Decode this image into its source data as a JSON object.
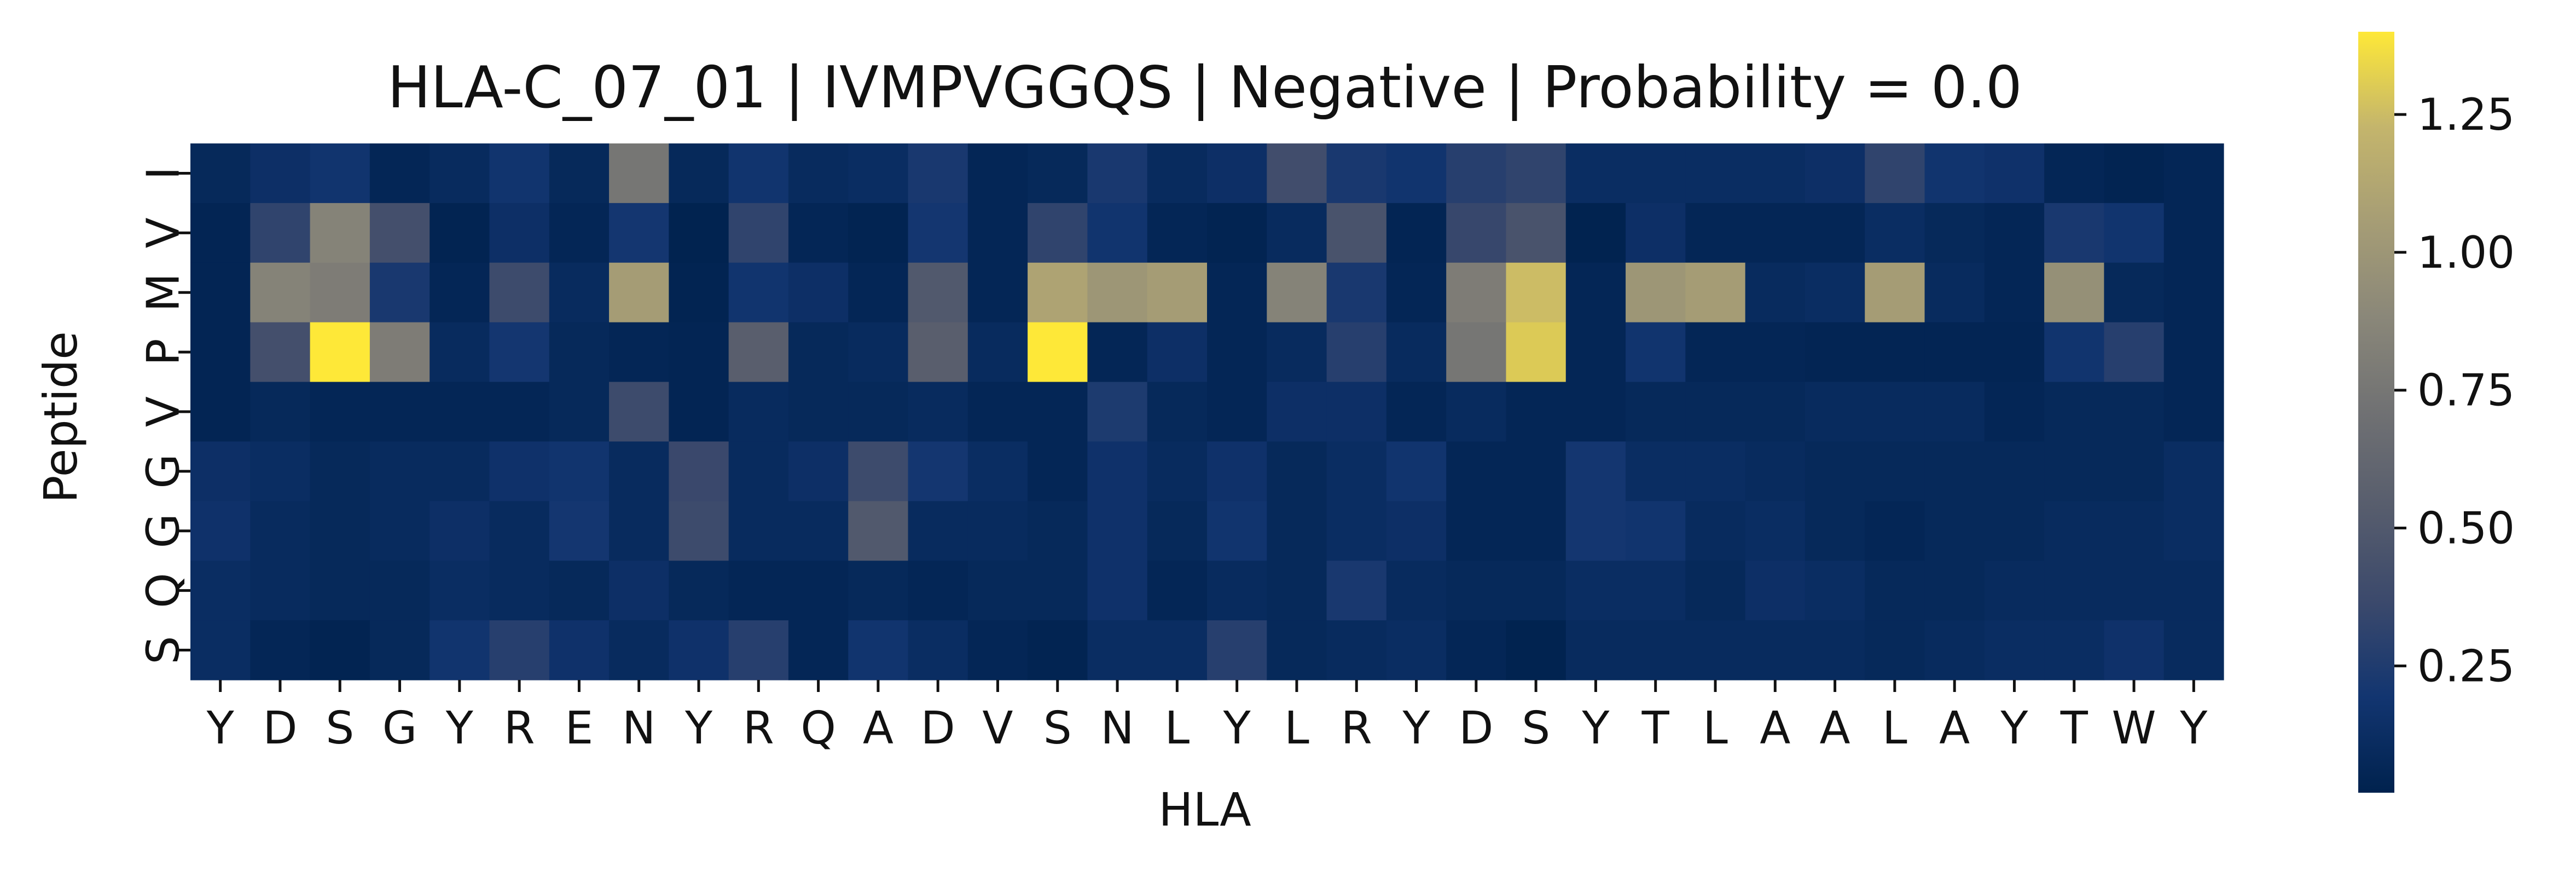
{
  "chart_data": {
    "type": "heatmap",
    "title": "HLA-C_07_01 | IVMPVGGQS | Negative | Probability = 0.0",
    "xlabel": "HLA",
    "ylabel": "Peptide",
    "x_tick_labels": [
      "Y",
      "D",
      "S",
      "G",
      "Y",
      "R",
      "E",
      "N",
      "Y",
      "R",
      "Q",
      "A",
      "D",
      "V",
      "S",
      "N",
      "L",
      "Y",
      "L",
      "R",
      "Y",
      "D",
      "S",
      "Y",
      "T",
      "L",
      "A",
      "A",
      "L",
      "A",
      "Y",
      "T",
      "W",
      "Y"
    ],
    "y_tick_labels": [
      "I",
      "V",
      "M",
      "P",
      "V",
      "G",
      "G",
      "Q",
      "S"
    ],
    "values": [
      [
        0.08,
        0.14,
        0.18,
        0.06,
        0.1,
        0.18,
        0.08,
        0.75,
        0.08,
        0.18,
        0.1,
        0.12,
        0.22,
        0.06,
        0.08,
        0.22,
        0.1,
        0.14,
        0.4,
        0.22,
        0.18,
        0.28,
        0.32,
        0.12,
        0.12,
        0.12,
        0.12,
        0.14,
        0.32,
        0.18,
        0.16,
        0.06,
        0.04,
        0.06
      ],
      [
        0.05,
        0.32,
        0.85,
        0.42,
        0.04,
        0.14,
        0.06,
        0.2,
        0.03,
        0.32,
        0.06,
        0.04,
        0.2,
        0.06,
        0.32,
        0.18,
        0.06,
        0.04,
        0.1,
        0.45,
        0.05,
        0.35,
        0.45,
        0.03,
        0.14,
        0.06,
        0.06,
        0.06,
        0.12,
        0.08,
        0.06,
        0.22,
        0.18,
        0.06
      ],
      [
        0.05,
        0.85,
        0.8,
        0.22,
        0.06,
        0.38,
        0.1,
        1.05,
        0.04,
        0.18,
        0.14,
        0.06,
        0.5,
        0.06,
        1.1,
        1.0,
        1.05,
        0.06,
        0.85,
        0.22,
        0.06,
        0.8,
        1.25,
        0.06,
        1.0,
        1.05,
        0.1,
        0.12,
        1.05,
        0.1,
        0.06,
        0.95,
        0.08,
        0.06
      ],
      [
        0.05,
        0.42,
        1.4,
        0.8,
        0.1,
        0.2,
        0.08,
        0.06,
        0.05,
        0.55,
        0.08,
        0.1,
        0.55,
        0.1,
        1.4,
        0.06,
        0.14,
        0.06,
        0.1,
        0.28,
        0.1,
        0.75,
        1.3,
        0.06,
        0.18,
        0.06,
        0.06,
        0.05,
        0.05,
        0.05,
        0.05,
        0.18,
        0.28,
        0.06
      ],
      [
        0.05,
        0.08,
        0.06,
        0.06,
        0.06,
        0.06,
        0.08,
        0.38,
        0.05,
        0.1,
        0.08,
        0.08,
        0.1,
        0.06,
        0.06,
        0.24,
        0.08,
        0.06,
        0.14,
        0.14,
        0.06,
        0.1,
        0.06,
        0.06,
        0.08,
        0.08,
        0.08,
        0.1,
        0.1,
        0.1,
        0.06,
        0.08,
        0.08,
        0.06
      ],
      [
        0.14,
        0.12,
        0.08,
        0.1,
        0.1,
        0.16,
        0.18,
        0.1,
        0.36,
        0.1,
        0.14,
        0.38,
        0.2,
        0.12,
        0.06,
        0.16,
        0.1,
        0.16,
        0.08,
        0.12,
        0.18,
        0.06,
        0.06,
        0.2,
        0.12,
        0.12,
        0.1,
        0.08,
        0.08,
        0.08,
        0.08,
        0.08,
        0.08,
        0.12
      ],
      [
        0.16,
        0.1,
        0.08,
        0.1,
        0.14,
        0.1,
        0.2,
        0.1,
        0.38,
        0.1,
        0.1,
        0.5,
        0.1,
        0.1,
        0.08,
        0.16,
        0.08,
        0.18,
        0.08,
        0.12,
        0.14,
        0.06,
        0.06,
        0.2,
        0.18,
        0.1,
        0.12,
        0.08,
        0.06,
        0.08,
        0.08,
        0.1,
        0.1,
        0.12
      ],
      [
        0.12,
        0.1,
        0.08,
        0.08,
        0.12,
        0.1,
        0.08,
        0.14,
        0.08,
        0.06,
        0.06,
        0.08,
        0.06,
        0.08,
        0.08,
        0.16,
        0.06,
        0.1,
        0.08,
        0.22,
        0.1,
        0.08,
        0.08,
        0.12,
        0.12,
        0.08,
        0.14,
        0.12,
        0.08,
        0.08,
        0.1,
        0.1,
        0.1,
        0.1
      ],
      [
        0.12,
        0.06,
        0.04,
        0.08,
        0.18,
        0.28,
        0.16,
        0.1,
        0.16,
        0.28,
        0.06,
        0.18,
        0.12,
        0.06,
        0.04,
        0.12,
        0.12,
        0.28,
        0.08,
        0.1,
        0.12,
        0.06,
        0.03,
        0.1,
        0.1,
        0.1,
        0.1,
        0.1,
        0.08,
        0.1,
        0.12,
        0.12,
        0.16,
        0.1
      ]
    ],
    "vmin": 0.02,
    "vmax": 1.4,
    "colormap": "cividis",
    "colorbar": {
      "ticks": [
        0.25,
        0.5,
        0.75,
        1.0,
        1.25
      ],
      "tick_labels": [
        "0.25",
        "0.50",
        "0.75",
        "1.00",
        "1.25"
      ]
    },
    "grid": false,
    "legend": "none"
  }
}
